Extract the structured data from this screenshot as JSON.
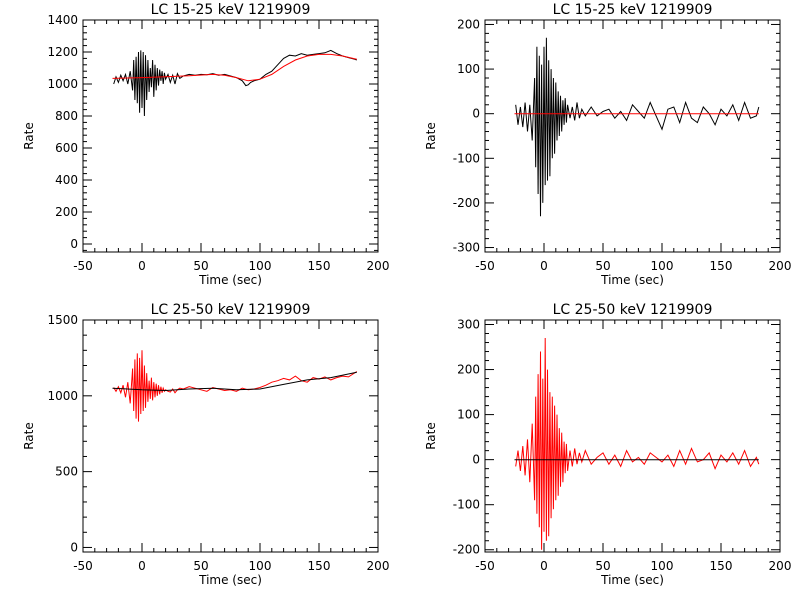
{
  "chart_data": [
    {
      "type": "line",
      "title": "LC 15-25 keV  1219909",
      "xlabel": "Time (sec)",
      "ylabel": "Rate",
      "xlim": [
        -50,
        200
      ],
      "ylim": [
        -50,
        1400
      ],
      "xticks": [
        -50,
        0,
        50,
        100,
        150,
        200
      ],
      "yticks": [
        0,
        200,
        400,
        600,
        800,
        1000,
        1200,
        1400
      ],
      "colors": {
        "data": "#000000",
        "model": "#ff0000"
      },
      "series": [
        {
          "kind": "data",
          "x": [
            -24,
            -22,
            -20,
            -18,
            -16,
            -14,
            -12,
            -10,
            -8,
            -7,
            -6,
            -5,
            -4,
            -3,
            -2,
            -1,
            0,
            1,
            2,
            3,
            4,
            5,
            6,
            7,
            8,
            9,
            10,
            11,
            12,
            13,
            14,
            15,
            16,
            17,
            18,
            19,
            20,
            22,
            24,
            26,
            28,
            30,
            32,
            35,
            40,
            45,
            50,
            55,
            60,
            65,
            70,
            75,
            80,
            85,
            88,
            90,
            92,
            95,
            100,
            105,
            110,
            115,
            120,
            125,
            130,
            135,
            140,
            145,
            150,
            155,
            160,
            165,
            170,
            175,
            180,
            182
          ],
          "y": [
            1000,
            1045,
            1010,
            1055,
            1020,
            1060,
            1000,
            1080,
            960,
            1150,
            900,
            1170,
            880,
            1200,
            820,
            1210,
            850,
            1200,
            800,
            1180,
            900,
            1150,
            950,
            1100,
            980,
            1150,
            920,
            1120,
            960,
            1100,
            990,
            1090,
            1020,
            1080,
            1000,
            1070,
            1030,
            1060,
            1010,
            1055,
            1000,
            1065,
            1035,
            1050,
            1060,
            1055,
            1060,
            1058,
            1065,
            1055,
            1060,
            1050,
            1040,
            1020,
            990,
            995,
            1010,
            1020,
            1030,
            1060,
            1080,
            1120,
            1160,
            1180,
            1175,
            1190,
            1180,
            1185,
            1190,
            1195,
            1210,
            1190,
            1175,
            1165,
            1155,
            1150
          ]
        },
        {
          "kind": "model",
          "x": [
            -25,
            0,
            20,
            40,
            60,
            70,
            80,
            90,
            100,
            110,
            120,
            130,
            140,
            150,
            160,
            170,
            182
          ],
          "y": [
            1035,
            1040,
            1045,
            1052,
            1060,
            1055,
            1040,
            1020,
            1030,
            1060,
            1110,
            1150,
            1175,
            1185,
            1185,
            1175,
            1155
          ]
        }
      ]
    },
    {
      "type": "line",
      "title": "LC 15-25 keV  1219909",
      "xlabel": "Time (sec)",
      "ylabel": "Rate",
      "xlim": [
        -50,
        200
      ],
      "ylim": [
        -310,
        210
      ],
      "xticks": [
        -50,
        0,
        50,
        100,
        150,
        200
      ],
      "yticks": [
        -300,
        -200,
        -100,
        0,
        100,
        200
      ],
      "colors": {
        "data": "#000000",
        "model": "#ff0000"
      },
      "series": [
        {
          "kind": "data",
          "x": [
            -24,
            -22,
            -20,
            -18,
            -16,
            -14,
            -12,
            -10,
            -8,
            -7,
            -6,
            -5,
            -4,
            -3,
            -2,
            -1,
            0,
            1,
            2,
            3,
            4,
            5,
            6,
            7,
            8,
            9,
            10,
            11,
            12,
            13,
            14,
            15,
            16,
            17,
            18,
            19,
            20,
            22,
            24,
            26,
            28,
            30,
            32,
            35,
            40,
            45,
            50,
            55,
            60,
            65,
            70,
            75,
            80,
            85,
            90,
            95,
            100,
            105,
            110,
            115,
            120,
            125,
            130,
            135,
            140,
            145,
            150,
            155,
            160,
            165,
            170,
            175,
            180,
            182
          ],
          "y": [
            20,
            -25,
            15,
            -30,
            25,
            -40,
            20,
            -60,
            80,
            -120,
            150,
            -180,
            130,
            -230,
            110,
            -200,
            150,
            -160,
            170,
            -150,
            120,
            -140,
            100,
            -100,
            80,
            -90,
            70,
            -60,
            50,
            -50,
            40,
            -40,
            30,
            -25,
            35,
            -20,
            20,
            -10,
            15,
            -15,
            25,
            -10,
            10,
            -5,
            15,
            -5,
            5,
            10,
            -10,
            5,
            -15,
            20,
            5,
            -10,
            25,
            -5,
            -35,
            10,
            15,
            -20,
            25,
            -10,
            -20,
            15,
            0,
            -25,
            10,
            -5,
            20,
            -15,
            25,
            -10,
            -5,
            15
          ]
        },
        {
          "kind": "model",
          "x": [
            -25,
            182
          ],
          "y": [
            0,
            0
          ]
        }
      ]
    },
    {
      "type": "line",
      "title": "LC 25-50 keV  1219909",
      "xlabel": "Time (sec)",
      "ylabel": "Rate",
      "xlim": [
        -50,
        200
      ],
      "ylim": [
        -30,
        1500
      ],
      "xticks": [
        -50,
        0,
        50,
        100,
        150,
        200
      ],
      "yticks": [
        0,
        500,
        1000,
        1500
      ],
      "colors": {
        "data": "#ff0000",
        "model": "#000000"
      },
      "series": [
        {
          "kind": "data",
          "x": [
            -24,
            -22,
            -20,
            -18,
            -16,
            -14,
            -12,
            -10,
            -8,
            -7,
            -6,
            -5,
            -4,
            -3,
            -2,
            -1,
            0,
            1,
            2,
            3,
            4,
            5,
            6,
            7,
            8,
            9,
            10,
            11,
            12,
            13,
            14,
            15,
            16,
            17,
            18,
            19,
            20,
            22,
            24,
            26,
            28,
            30,
            32,
            35,
            40,
            45,
            50,
            55,
            60,
            65,
            70,
            75,
            80,
            85,
            90,
            95,
            100,
            105,
            110,
            115,
            120,
            125,
            130,
            135,
            140,
            145,
            150,
            155,
            160,
            165,
            170,
            175,
            180,
            182
          ],
          "y": [
            1055,
            1030,
            1060,
            1020,
            1070,
            990,
            1090,
            950,
            1180,
            900,
            1240,
            850,
            1280,
            830,
            1250,
            880,
            1300,
            900,
            1200,
            920,
            1150,
            960,
            1100,
            980,
            1120,
            970,
            1090,
            990,
            1080,
            1000,
            1070,
            1010,
            1060,
            1020,
            1050,
            1030,
            1040,
            1030,
            1025,
            1045,
            1020,
            1040,
            1050,
            1045,
            1060,
            1050,
            1040,
            1030,
            1055,
            1045,
            1035,
            1040,
            1030,
            1050,
            1040,
            1045,
            1055,
            1070,
            1090,
            1100,
            1115,
            1105,
            1130,
            1100,
            1090,
            1120,
            1110,
            1125,
            1105,
            1120,
            1130,
            1125,
            1150,
            1160
          ]
        },
        {
          "kind": "model",
          "x": [
            -25,
            0,
            20,
            40,
            60,
            80,
            100,
            120,
            140,
            160,
            182
          ],
          "y": [
            1050,
            1040,
            1035,
            1045,
            1050,
            1040,
            1045,
            1075,
            1105,
            1120,
            1155
          ]
        }
      ]
    },
    {
      "type": "line",
      "title": "LC 25-50 keV  1219909",
      "xlabel": "Time (sec)",
      "ylabel": "Rate",
      "xlim": [
        -50,
        200
      ],
      "ylim": [
        -205,
        310
      ],
      "xticks": [
        -50,
        0,
        50,
        100,
        150,
        200
      ],
      "yticks": [
        -200,
        -100,
        0,
        100,
        200,
        300
      ],
      "colors": {
        "data": "#ff0000",
        "model": "#000000"
      },
      "series": [
        {
          "kind": "data",
          "x": [
            -24,
            -22,
            -20,
            -18,
            -16,
            -14,
            -12,
            -10,
            -8,
            -7,
            -6,
            -5,
            -4,
            -3,
            -2,
            -1,
            0,
            1,
            2,
            3,
            4,
            5,
            6,
            7,
            8,
            9,
            10,
            11,
            12,
            13,
            14,
            15,
            16,
            17,
            18,
            19,
            20,
            22,
            24,
            26,
            28,
            30,
            32,
            35,
            40,
            45,
            50,
            55,
            60,
            65,
            70,
            75,
            80,
            85,
            90,
            95,
            100,
            105,
            110,
            115,
            120,
            125,
            130,
            135,
            140,
            145,
            150,
            155,
            160,
            165,
            170,
            175,
            180,
            182
          ],
          "y": [
            -15,
            20,
            -25,
            30,
            -35,
            45,
            -50,
            80,
            -90,
            140,
            -120,
            190,
            -150,
            240,
            -200,
            180,
            -160,
            270,
            -180,
            200,
            -170,
            150,
            -130,
            140,
            -110,
            120,
            -90,
            100,
            -80,
            70,
            -60,
            60,
            -50,
            40,
            -30,
            35,
            -25,
            20,
            -15,
            25,
            -10,
            15,
            -5,
            20,
            -10,
            5,
            15,
            -10,
            10,
            -15,
            20,
            -5,
            5,
            -10,
            15,
            5,
            -5,
            10,
            -15,
            20,
            -10,
            25,
            -5,
            0,
            15,
            -20,
            10,
            -5,
            15,
            -10,
            20,
            -15,
            5,
            -10
          ]
        },
        {
          "kind": "model",
          "x": [
            -25,
            182
          ],
          "y": [
            0,
            0
          ]
        }
      ]
    }
  ]
}
